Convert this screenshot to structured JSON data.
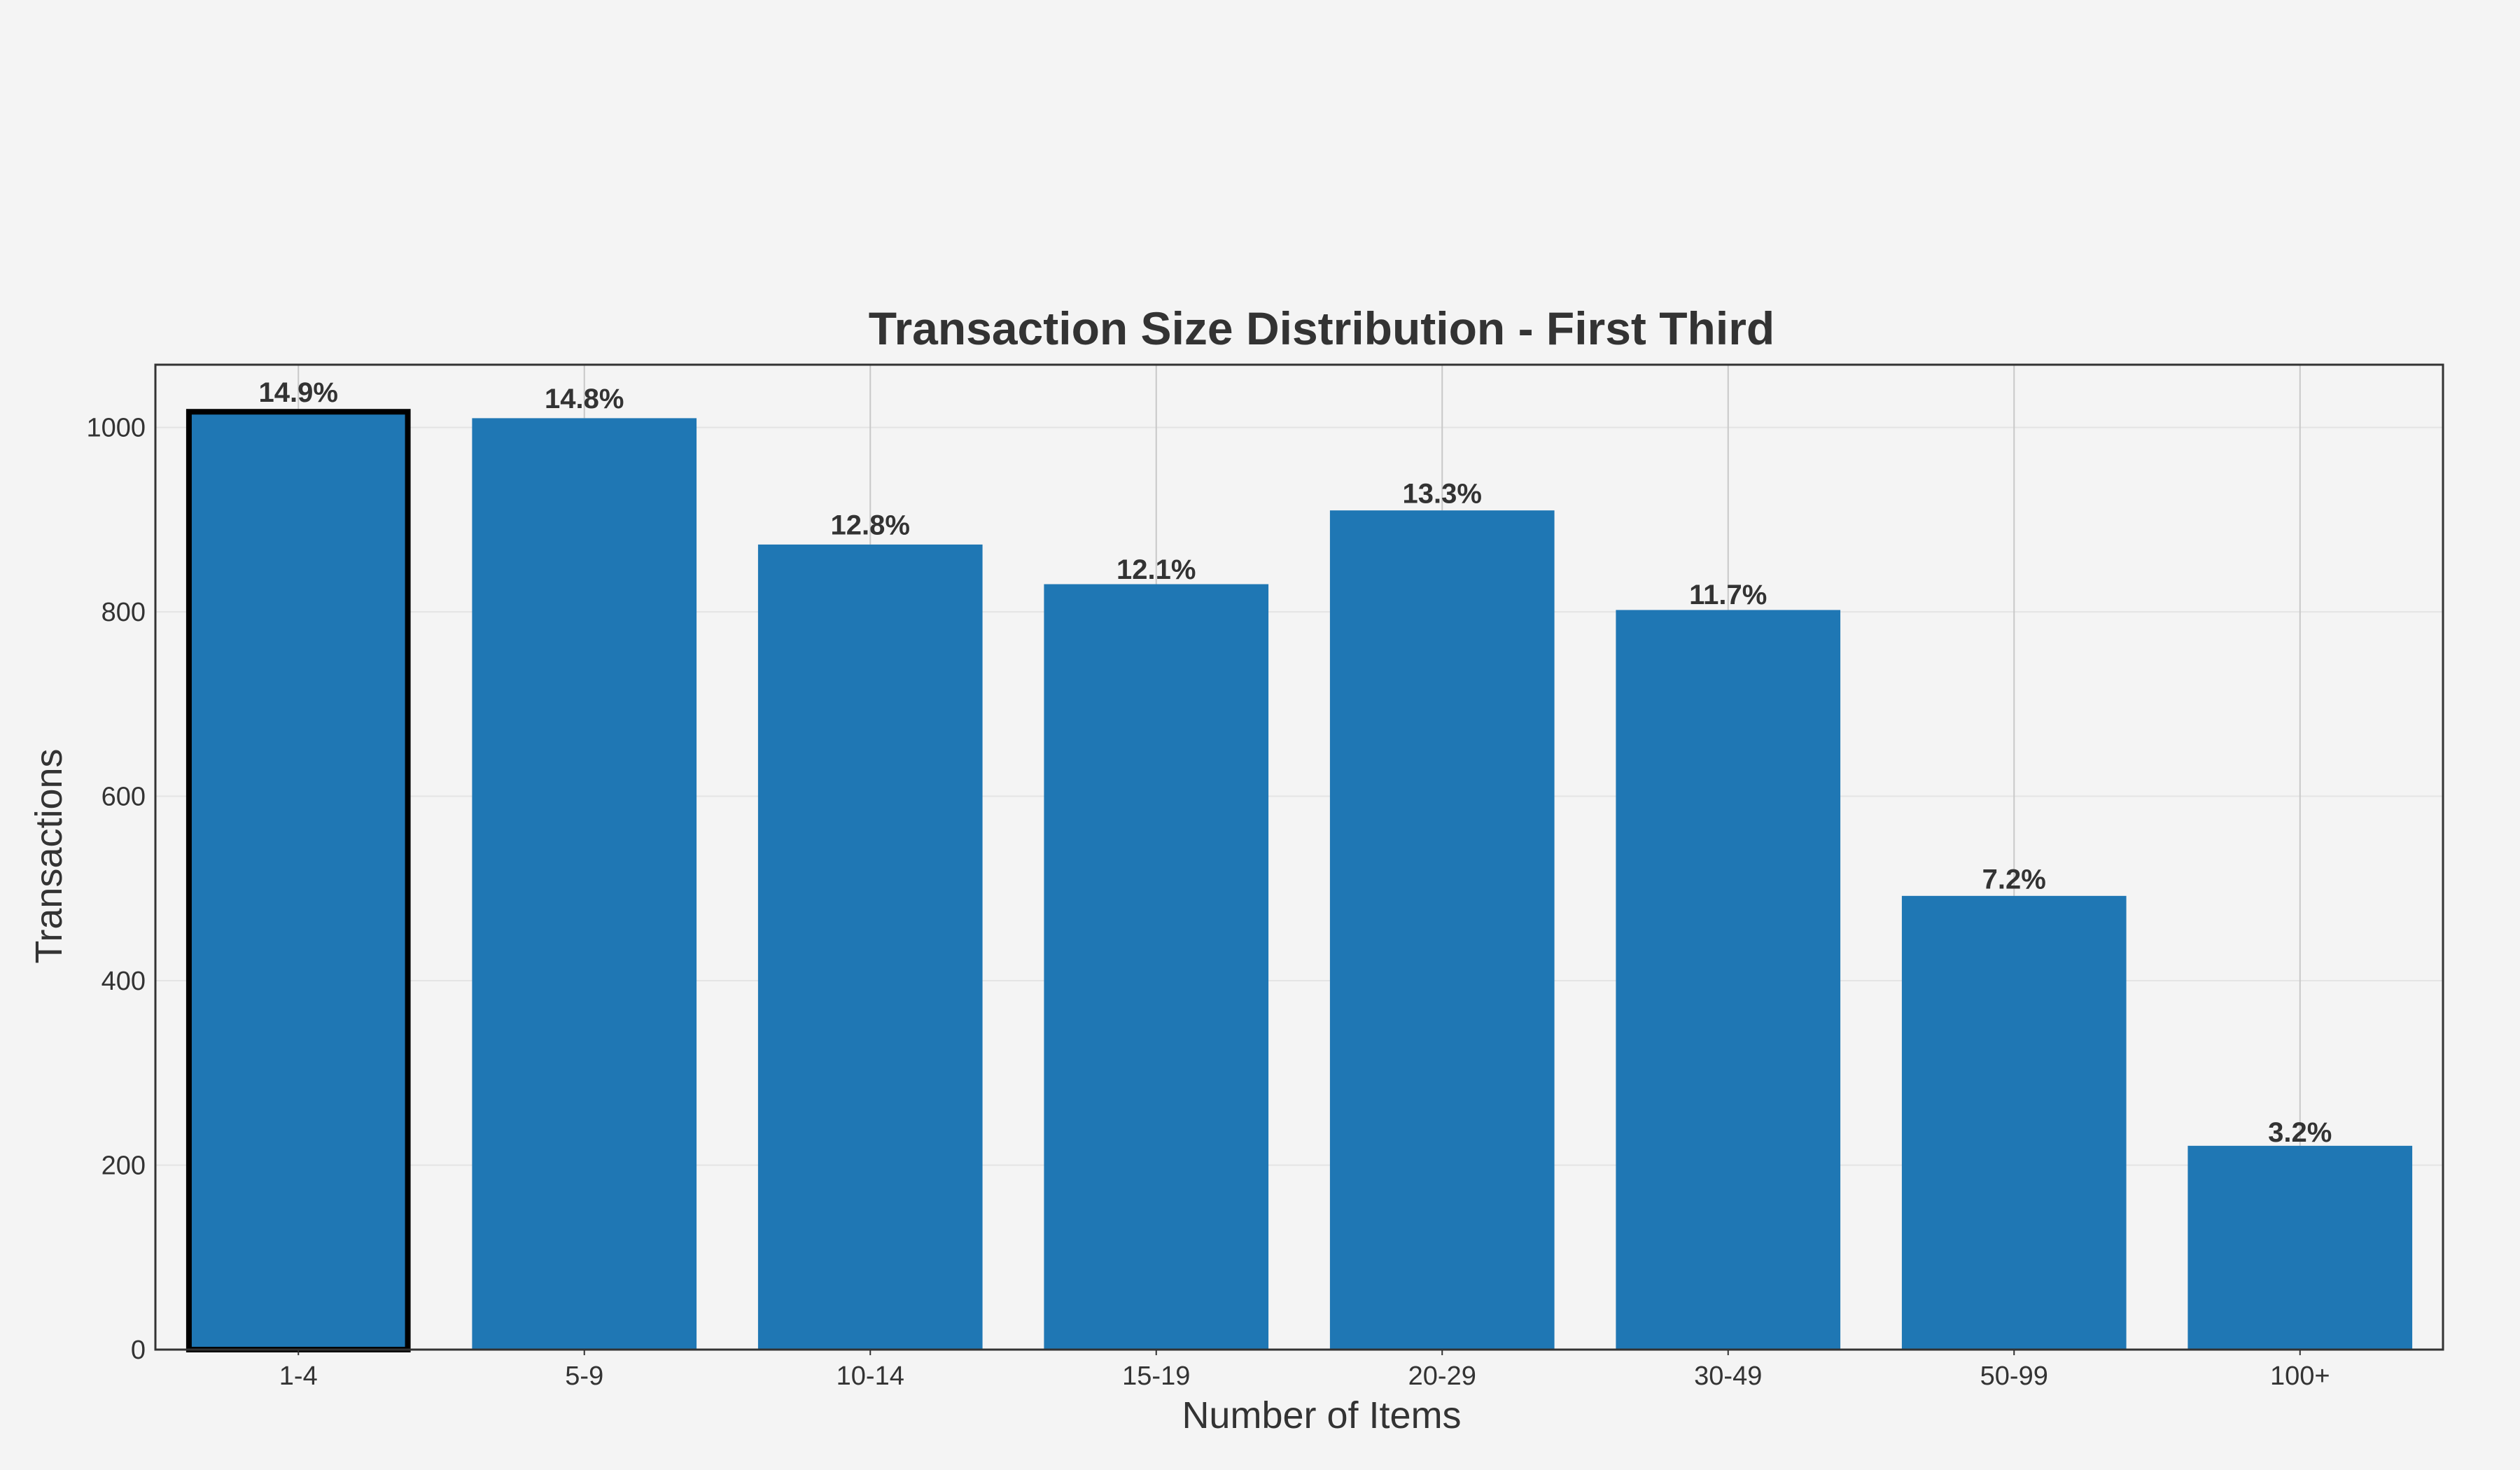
{
  "chart_data": {
    "type": "bar",
    "title": "Transaction Size Distribution - First Third",
    "xlabel": "Number of Items",
    "ylabel": "Transactions",
    "categories": [
      "1-4",
      "5-9",
      "10-14",
      "15-19",
      "20-29",
      "30-49",
      "50-99",
      "100+"
    ],
    "values": [
      1020,
      1010,
      873,
      830,
      910,
      802,
      492,
      221
    ],
    "percent_labels": [
      "14.9%",
      "14.8%",
      "12.8%",
      "12.1%",
      "13.3%",
      "11.7%",
      "7.2%",
      "3.2%"
    ],
    "percent_values": [
      14.9,
      14.8,
      12.8,
      12.1,
      13.3,
      11.7,
      7.2,
      3.2
    ],
    "ylim": [
      0,
      1068
    ],
    "yticks": [
      0,
      200,
      400,
      600,
      800,
      1000
    ],
    "highlighted_category": "1-4",
    "grid": "horizontal",
    "colors": {
      "bar": "#1f77b4",
      "highlight_edge": "#000000",
      "leader_line": "#c8c8c8",
      "grid": "#e4e4e4",
      "background": "#f4f4f4",
      "text": "#333333",
      "axis": "#333333"
    }
  }
}
